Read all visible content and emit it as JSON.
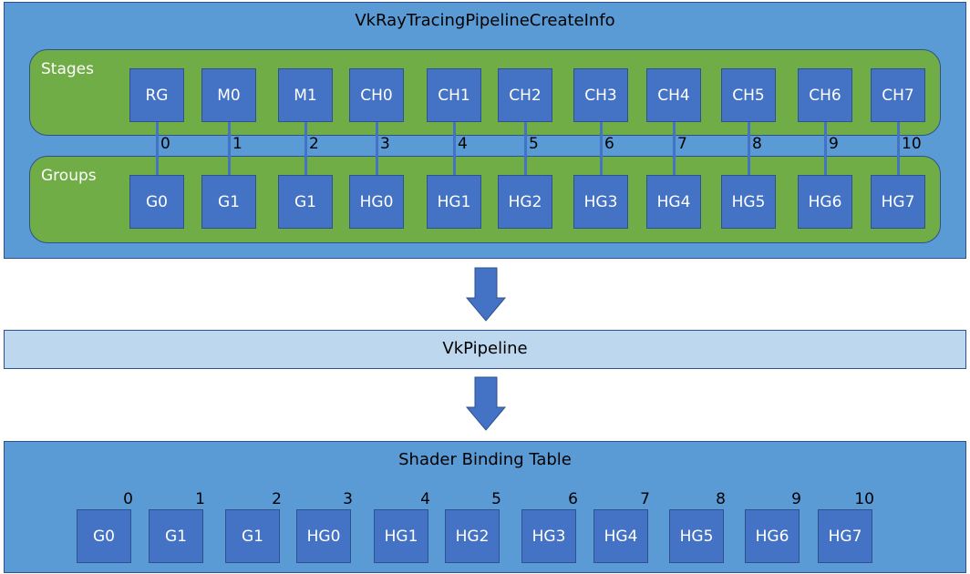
{
  "create_info": {
    "title": "VkRayTracingPipelineCreateInfo",
    "stages_label": "Stages",
    "groups_label": "Groups",
    "stages": [
      "RG",
      "M0",
      "M1",
      "CH0",
      "CH1",
      "CH2",
      "CH3",
      "CH4",
      "CH5",
      "CH6",
      "CH7"
    ],
    "groups": [
      "G0",
      "G1",
      "G1",
      "HG0",
      "HG1",
      "HG2",
      "HG3",
      "HG4",
      "HG5",
      "HG6",
      "HG7"
    ],
    "indices": [
      "0",
      "1",
      "2",
      "3",
      "4",
      "5",
      "6",
      "7",
      "8",
      "9",
      "10"
    ]
  },
  "pipeline": {
    "title": "VkPipeline"
  },
  "sbt": {
    "title": "Shader Binding Table",
    "entries": [
      "G0",
      "G1",
      "G1",
      "HG0",
      "HG1",
      "HG2",
      "HG3",
      "HG4",
      "HG5",
      "HG6",
      "HG7"
    ],
    "indices": [
      "0",
      "1",
      "2",
      "3",
      "4",
      "5",
      "6",
      "7",
      "8",
      "9",
      "10"
    ]
  },
  "colors": {
    "container": "#5B9BD5",
    "section": "#70AD47",
    "node": "#4472C4",
    "pipeline": "#BDD7EE",
    "border": "#2F528F"
  }
}
